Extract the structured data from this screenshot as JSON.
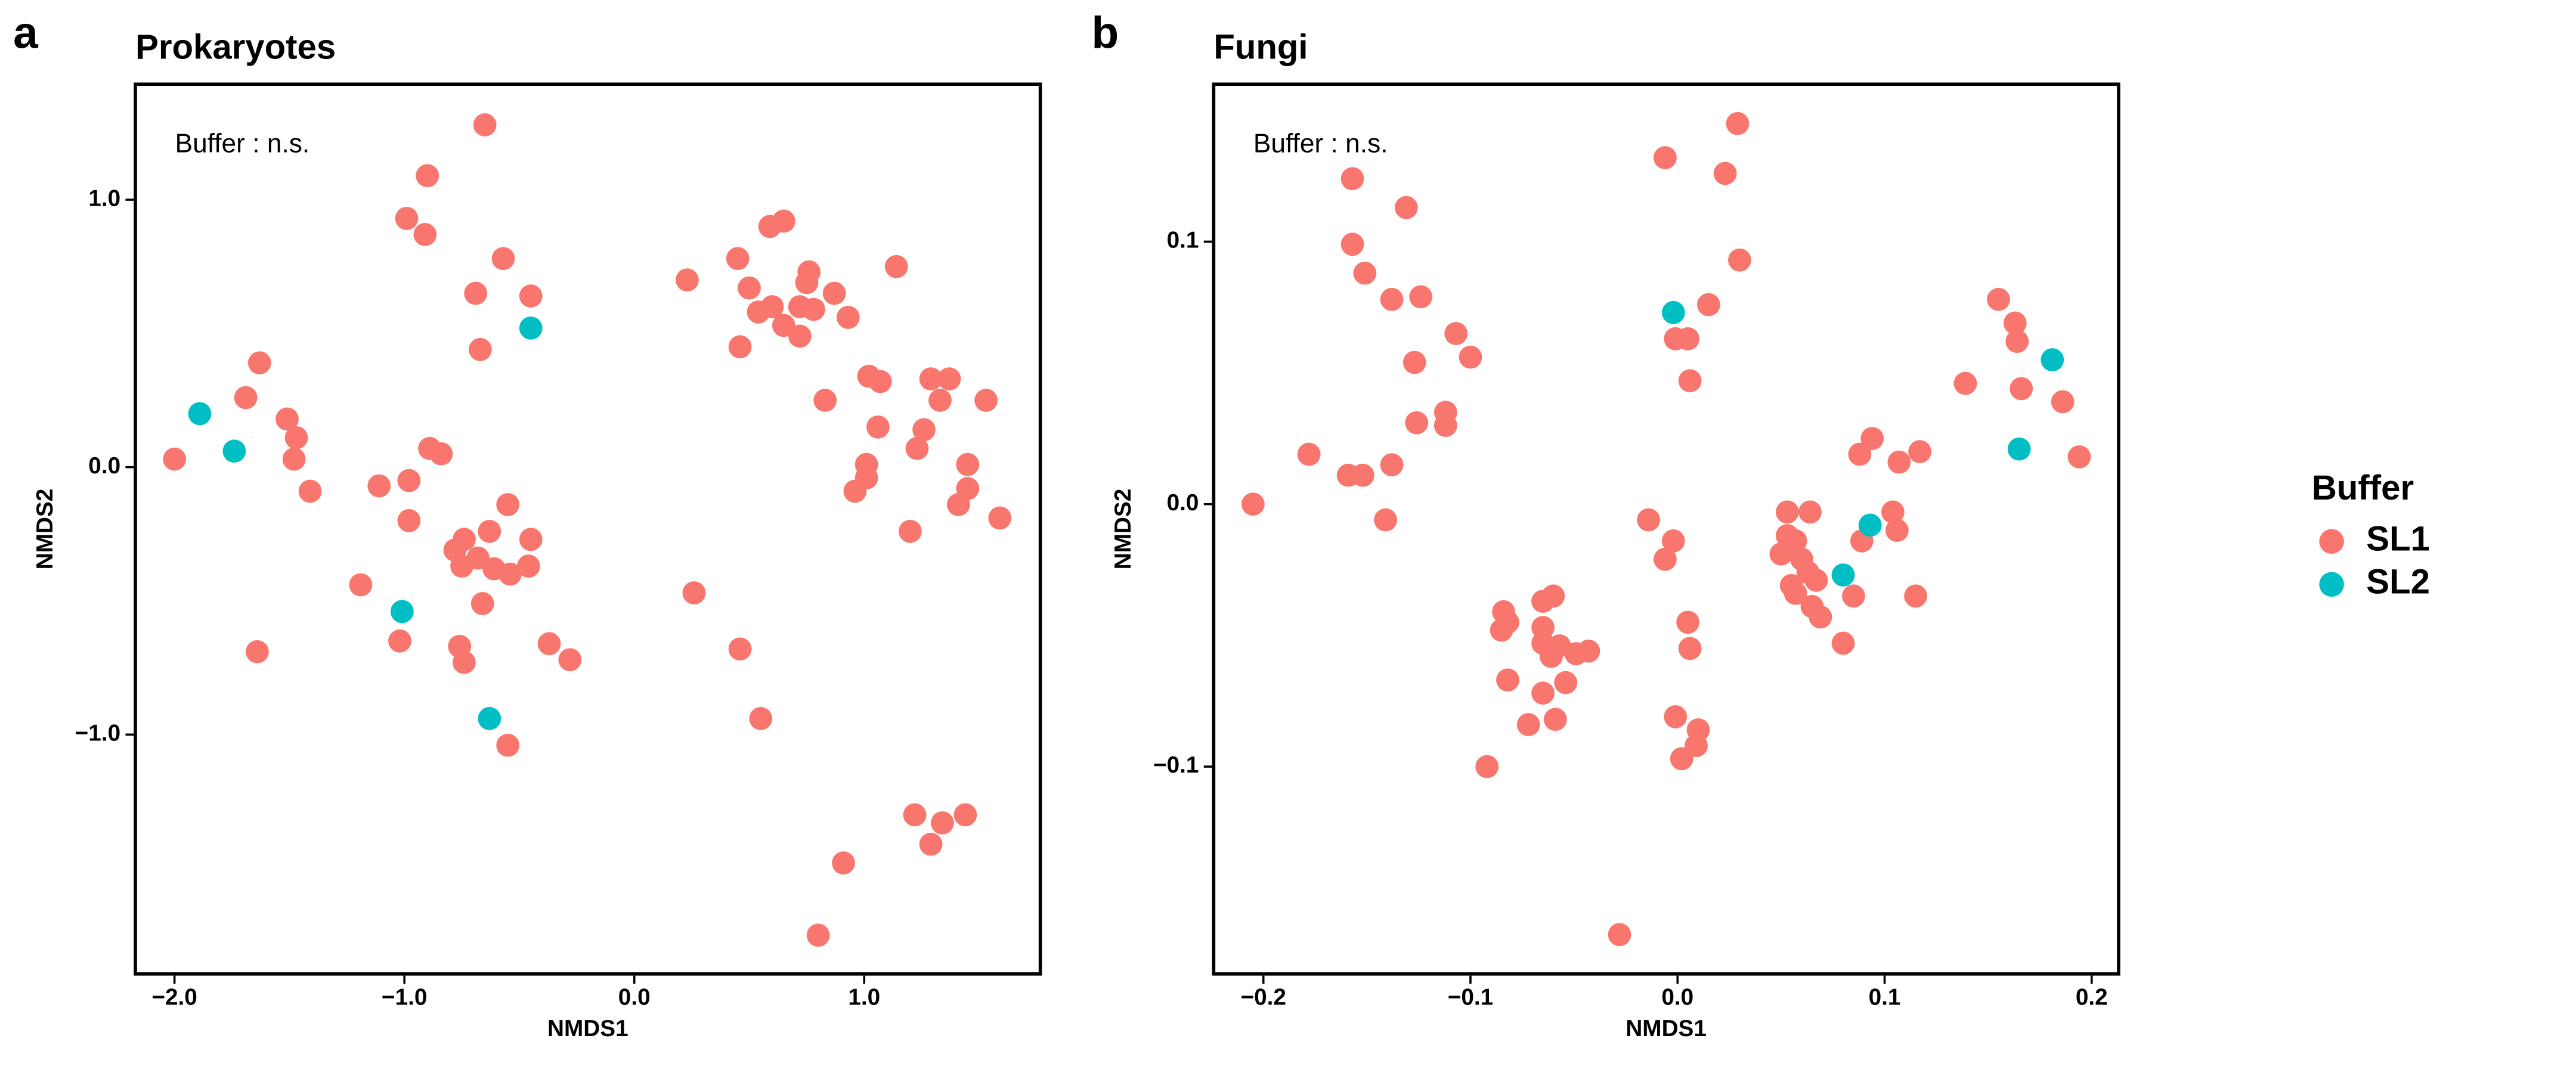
{
  "chart_data": [
    {
      "type": "scatter",
      "panel_label": "a",
      "title": "Prokaryotes",
      "annotation": "Buffer : n.s.",
      "x_label": "NMDS1",
      "y_label": "NMDS2",
      "xlim": [
        -2.17,
        1.766
      ],
      "ylim": [
        -1.895,
        1.432
      ],
      "xticks": [
        {
          "value": -2,
          "label": "−2.0"
        },
        {
          "value": -1,
          "label": "−1.0"
        },
        {
          "value": 0,
          "label": "0.0"
        },
        {
          "value": 1,
          "label": "1.0"
        }
      ],
      "yticks": [
        {
          "value": -1,
          "label": "−1.0"
        },
        {
          "value": 0,
          "label": "0.0"
        },
        {
          "value": 1,
          "label": "1.0"
        }
      ],
      "series": [
        {
          "name": "SL1",
          "color": "#F8766D",
          "x": [
            -0.65,
            -0.9,
            -0.99,
            -0.91,
            -0.57,
            -0.69,
            -0.45,
            -0.67,
            -1.63,
            -1.69,
            -1.51,
            -1.47,
            -1.48,
            -1.41,
            -2.0,
            -0.89,
            -0.84,
            -0.98,
            -1.11,
            -0.98,
            -0.55,
            -0.45,
            -0.63,
            -0.78,
            -0.74,
            -0.68,
            -0.75,
            -0.61,
            -0.54,
            -0.46,
            -0.66,
            -1.19,
            -1.64,
            -1.02,
            -0.76,
            -0.74,
            -0.37,
            -0.28,
            -0.55,
            0.23,
            0.45,
            0.59,
            0.65,
            0.5,
            0.54,
            0.6,
            0.65,
            0.72,
            0.76,
            0.75,
            0.78,
            0.72,
            0.87,
            0.93,
            0.46,
            1.14,
            0.83,
            1.02,
            1.07,
            1.06,
            1.01,
            1.01,
            0.96,
            1.23,
            1.26,
            1.29,
            1.37,
            1.33,
            1.53,
            1.45,
            1.45,
            1.41,
            1.59,
            1.2,
            0.26,
            0.46,
            0.55,
            1.22,
            1.34,
            1.44,
            1.29,
            0.91,
            0.8
          ],
          "values": [
            1.28,
            1.09,
            0.93,
            0.87,
            0.78,
            0.65,
            0.64,
            0.44,
            0.39,
            0.26,
            0.18,
            0.11,
            0.03,
            -0.09,
            0.03,
            0.07,
            0.05,
            -0.05,
            -0.07,
            -0.2,
            -0.14,
            -0.27,
            -0.24,
            -0.31,
            -0.27,
            -0.34,
            -0.37,
            -0.38,
            -0.4,
            -0.37,
            -0.51,
            -0.44,
            -0.69,
            -0.65,
            -0.67,
            -0.73,
            -0.66,
            -0.72,
            -1.04,
            0.7,
            0.78,
            0.9,
            0.92,
            0.67,
            0.58,
            0.6,
            0.53,
            0.6,
            0.73,
            0.69,
            0.59,
            0.49,
            0.65,
            0.56,
            0.45,
            0.75,
            0.25,
            0.34,
            0.32,
            0.15,
            0.01,
            -0.04,
            -0.09,
            0.07,
            0.14,
            0.33,
            0.33,
            0.25,
            0.25,
            0.01,
            -0.08,
            -0.14,
            -0.19,
            -0.24,
            -0.47,
            -0.68,
            -0.94,
            -1.3,
            -1.33,
            -1.3,
            -1.41,
            -1.48,
            -1.75
          ]
        },
        {
          "name": "SL2",
          "color": "#00BFC4",
          "x": [
            -0.45,
            -1.89,
            -1.74,
            -1.01,
            -0.63
          ],
          "values": [
            0.52,
            0.2,
            0.06,
            -0.54,
            -0.94
          ]
        }
      ]
    },
    {
      "type": "scatter",
      "panel_label": "b",
      "title": "Fungi",
      "annotation": "Buffer : n.s.",
      "x_label": "NMDS1",
      "y_label": "NMDS2",
      "xlim": [
        -0.224,
        0.213
      ],
      "ylim": [
        -0.179,
        0.16
      ],
      "xticks": [
        {
          "value": -0.2,
          "label": "−0.2"
        },
        {
          "value": -0.1,
          "label": "−0.1"
        },
        {
          "value": 0,
          "label": "0.0"
        },
        0.1,
        0.2
      ],
      "yticks": [
        {
          "value": -0.1,
          "label": "−0.1"
        },
        {
          "value": 0,
          "label": "0.0"
        },
        0.1
      ],
      "legend_title": "Buffer",
      "legend": "right",
      "series": [
        {
          "name": "SL1",
          "color": "#F8766D",
          "x": [
            -0.205,
            -0.178,
            -0.157,
            -0.157,
            -0.151,
            -0.131,
            -0.138,
            -0.124,
            -0.127,
            -0.126,
            -0.138,
            -0.159,
            -0.152,
            -0.141,
            -0.107,
            -0.1,
            -0.112,
            -0.112,
            -0.006,
            0.029,
            0.023,
            0.03,
            0.015,
            -0.001,
            0.005,
            0.006,
            -0.014,
            -0.002,
            -0.006,
            0.005,
            0.006,
            -0.001,
            0.01,
            0.009,
            0.002,
            -0.028,
            -0.092,
            -0.084,
            -0.085,
            -0.082,
            -0.082,
            -0.065,
            -0.06,
            -0.065,
            -0.065,
            -0.057,
            -0.061,
            -0.049,
            -0.043,
            -0.054,
            -0.065,
            -0.072,
            -0.059,
            0.053,
            0.064,
            0.053,
            0.05,
            0.057,
            0.06,
            0.055,
            0.063,
            0.067,
            0.065,
            0.069,
            0.057,
            0.085,
            0.08,
            0.089,
            0.088,
            0.094,
            0.104,
            0.106,
            0.107,
            0.117,
            0.115,
            0.139,
            0.155,
            0.163,
            0.164,
            0.166,
            0.186,
            0.194
          ],
          "values": [
            0.0,
            0.019,
            0.124,
            0.099,
            0.088,
            0.113,
            0.078,
            0.079,
            0.054,
            0.031,
            0.015,
            0.011,
            0.011,
            -0.006,
            0.065,
            0.056,
            0.035,
            0.03,
            0.132,
            0.145,
            0.126,
            0.093,
            0.076,
            0.063,
            0.063,
            0.047,
            -0.006,
            -0.014,
            -0.021,
            -0.045,
            -0.055,
            -0.081,
            -0.086,
            -0.092,
            -0.097,
            -0.164,
            -0.1,
            -0.041,
            -0.048,
            -0.045,
            -0.067,
            -0.037,
            -0.035,
            -0.047,
            -0.053,
            -0.054,
            -0.058,
            -0.057,
            -0.056,
            -0.068,
            -0.072,
            -0.084,
            -0.082,
            -0.003,
            -0.003,
            -0.012,
            -0.019,
            -0.014,
            -0.021,
            -0.031,
            -0.026,
            -0.029,
            -0.039,
            -0.043,
            -0.034,
            -0.035,
            -0.053,
            -0.014,
            0.019,
            0.025,
            -0.003,
            -0.01,
            0.016,
            0.02,
            -0.035,
            0.046,
            0.078,
            0.069,
            0.062,
            0.044,
            0.039,
            0.018
          ]
        },
        {
          "name": "SL2",
          "color": "#00BFC4",
          "x": [
            -0.002,
            0.093,
            0.08,
            0.181,
            0.165
          ],
          "values": [
            0.073,
            -0.008,
            -0.027,
            0.055,
            0.021
          ]
        }
      ]
    }
  ]
}
